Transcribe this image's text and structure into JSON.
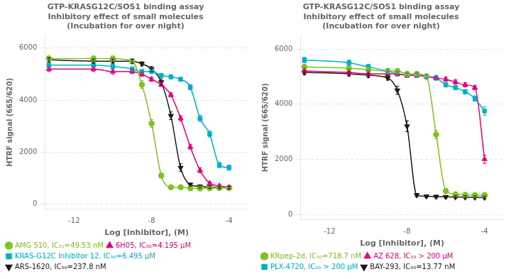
{
  "chart_data": [
    {
      "type": "line",
      "title": "GTP-KRASG12C/SOS1 binding assay\nInhibitory effect of small molecules\n(Incubation for over night)",
      "xlabel": "Log [Inhibitor], (M)",
      "ylabel": "HTRF signal (665/620)",
      "xlim": [
        -13.5,
        -3.0
      ],
      "ylim": [
        -200,
        6500
      ],
      "xticks": [
        -12,
        -8,
        -4
      ],
      "yticks": [
        0,
        2000,
        4000,
        6000
      ],
      "grid": true,
      "legend": "bottom",
      "x": [
        -13.3,
        -11,
        -10,
        -9,
        -8.5,
        -8,
        -7.5,
        -7,
        -6.5,
        -6,
        -5.5,
        -5,
        -4.5,
        -4
      ],
      "series": [
        {
          "name": "AMG 510, IC₅₀=49.53 nM",
          "color": "#7fc31c",
          "marker": "circle",
          "values": [
            5600,
            5600,
            5600,
            5500,
            4600,
            3100,
            1100,
            650,
            650,
            610,
            600,
            610,
            620,
            620
          ],
          "errors": [
            100,
            100,
            100,
            100,
            150,
            150,
            100,
            50,
            50,
            50,
            50,
            50,
            50,
            50
          ]
        },
        {
          "name": "6H05, IC₅₀=4.195 μM",
          "color": "#e6007e",
          "marker": "triangle-up",
          "values": [
            5200,
            5200,
            5100,
            5100,
            5000,
            4800,
            4600,
            4200,
            3300,
            2200,
            1300,
            800,
            700,
            650
          ],
          "errors": [
            100,
            100,
            100,
            80,
            80,
            80,
            80,
            80,
            100,
            100,
            100,
            60,
            60,
            60
          ]
        },
        {
          "name": "KRAS-G12C Inhibitor 12, IC₅₀=6.495 μM",
          "color": "#00b0c8",
          "marker": "square",
          "values": [
            5350,
            5350,
            5300,
            5200,
            5100,
            5100,
            4950,
            4900,
            4800,
            4500,
            3300,
            2700,
            1500,
            1400
          ],
          "errors": [
            100,
            100,
            100,
            80,
            80,
            80,
            80,
            80,
            80,
            100,
            120,
            120,
            100,
            100
          ]
        },
        {
          "name": "ARS-1620, IC₅₀=237.8 nM",
          "color": "#1a1a1a",
          "marker": "triangle-down",
          "values": [
            5550,
            5500,
            5500,
            5500,
            5400,
            5200,
            4700,
            3400,
            1400,
            750,
            680,
            650,
            640,
            630
          ],
          "errors": [
            80,
            80,
            80,
            80,
            80,
            100,
            120,
            150,
            150,
            60,
            60,
            50,
            50,
            50
          ]
        }
      ]
    },
    {
      "type": "line",
      "title": "GTP-KRASG12C/SOS1 binding assay\nInhibitory effect of small molecules\n(Incubation for over night)",
      "xlabel": "Log [Inhibitor], (M)",
      "ylabel": "HTRF signal (665/620)",
      "xlim": [
        -13.5,
        -3.0
      ],
      "ylim": [
        -200,
        6500
      ],
      "xticks": [
        -12,
        -8,
        -4
      ],
      "yticks": [
        0,
        2000,
        4000,
        6000
      ],
      "grid": true,
      "legend": "bottom",
      "x": [
        -13.3,
        -11,
        -10,
        -9,
        -8.5,
        -8,
        -7.5,
        -7,
        -6.5,
        -6,
        -5.5,
        -5,
        -4.5,
        -4
      ],
      "series": [
        {
          "name": "KRpep-2d, IC₅₀=718.7 nM",
          "color": "#7fc31c",
          "marker": "circle",
          "values": [
            5350,
            5300,
            5250,
            5200,
            5200,
            5100,
            5100,
            5000,
            2900,
            850,
            730,
            710,
            700,
            700
          ],
          "errors": [
            100,
            100,
            100,
            80,
            80,
            80,
            80,
            80,
            150,
            80,
            60,
            60,
            60,
            60
          ]
        },
        {
          "name": "AZ 628, IC₅₀ > 200 μM",
          "color": "#e6007e",
          "marker": "triangle-up",
          "values": [
            5200,
            5150,
            5100,
            5100,
            5100,
            5050,
            5050,
            5000,
            4950,
            4900,
            4800,
            4700,
            4600,
            2000
          ],
          "errors": [
            100,
            100,
            100,
            80,
            80,
            80,
            80,
            80,
            80,
            80,
            80,
            80,
            80,
            150
          ]
        },
        {
          "name": "PLX-4720, IC₅₀ > 200 μM",
          "color": "#00b0c8",
          "marker": "square",
          "values": [
            5600,
            5500,
            5350,
            5200,
            5100,
            5050,
            5050,
            5000,
            4950,
            4700,
            4600,
            4450,
            4200,
            3750
          ],
          "errors": [
            100,
            100,
            100,
            80,
            80,
            80,
            80,
            80,
            80,
            80,
            80,
            80,
            100,
            150
          ]
        },
        {
          "name": "BAY-293, IC₅₀=13.77 nM",
          "color": "#1a1a1a",
          "marker": "triangle-down",
          "values": [
            5150,
            5100,
            5050,
            4950,
            4500,
            3200,
            700,
            660,
            645,
            635,
            630,
            625,
            620,
            615
          ],
          "errors": [
            80,
            80,
            80,
            80,
            150,
            200,
            60,
            50,
            50,
            50,
            50,
            50,
            50,
            50
          ]
        }
      ]
    }
  ]
}
